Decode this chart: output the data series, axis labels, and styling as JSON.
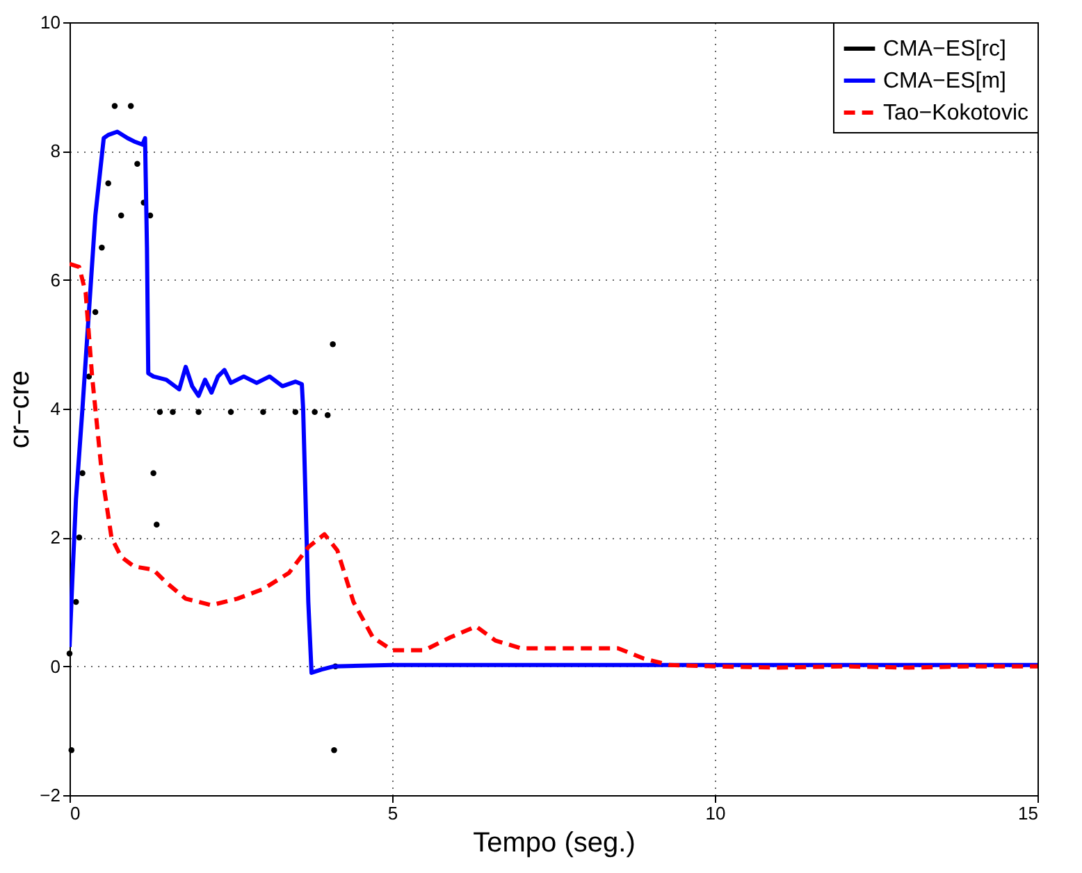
{
  "chart_data": {
    "type": "line",
    "xlabel": "Tempo (seg.)",
    "ylabel": "cr−cre",
    "xlim": [
      0,
      15
    ],
    "ylim": [
      -2,
      10
    ],
    "xticks": [
      0,
      5,
      10,
      15
    ],
    "yticks": [
      -2,
      0,
      2,
      4,
      6,
      8,
      10
    ],
    "grid": true,
    "legend": "top right",
    "series": [
      {
        "name": "CMA−ES[rc]",
        "type": "scatter",
        "color": "#000000",
        "x": [
          0,
          0.03,
          0.1,
          0.15,
          0.2,
          0.3,
          0.4,
          0.5,
          0.6,
          0.7,
          0.8,
          0.95,
          1.05,
          1.15,
          1.25,
          1.3,
          1.35,
          1.4,
          1.6,
          2.0,
          2.5,
          3.0,
          3.5,
          3.8,
          4.0,
          4.08,
          4.1,
          4.12
        ],
        "values": [
          0.2,
          -1.3,
          1.0,
          2.0,
          3.0,
          4.5,
          5.5,
          6.5,
          7.5,
          8.7,
          7.0,
          8.7,
          7.8,
          7.2,
          7.0,
          3.0,
          2.2,
          3.95,
          3.95,
          3.95,
          3.95,
          3.95,
          3.95,
          3.95,
          3.9,
          5.0,
          -1.3,
          0.0
        ]
      },
      {
        "name": "CMA−ES[m]",
        "color": "#0000ff",
        "line_style": "solid",
        "x": [
          0,
          0.05,
          0.1,
          0.2,
          0.3,
          0.4,
          0.53,
          0.6,
          0.74,
          0.9,
          1.0,
          1.13,
          1.17,
          1.2,
          1.22,
          1.3,
          1.5,
          1.7,
          1.8,
          1.9,
          2.0,
          2.1,
          2.2,
          2.3,
          2.4,
          2.5,
          2.7,
          2.9,
          3.1,
          3.3,
          3.5,
          3.6,
          3.62,
          3.7,
          3.75,
          3.9,
          4.1,
          5,
          7,
          9,
          11,
          13,
          15
        ],
        "values": [
          0.3,
          1.5,
          2.6,
          4.0,
          5.5,
          7.0,
          8.2,
          8.25,
          8.3,
          8.2,
          8.15,
          8.1,
          8.2,
          6.5,
          4.55,
          4.5,
          4.45,
          4.3,
          4.65,
          4.35,
          4.2,
          4.45,
          4.25,
          4.5,
          4.6,
          4.4,
          4.5,
          4.4,
          4.5,
          4.35,
          4.42,
          4.38,
          4.0,
          1.0,
          -0.1,
          -0.05,
          0.0,
          0.02,
          0.02,
          0.02,
          0.02,
          0.02,
          0.02
        ]
      },
      {
        "name": "Tao−Kokotovic",
        "color": "#ff0000",
        "line_style": "dashed",
        "x": [
          0,
          0.15,
          0.25,
          0.35,
          0.5,
          0.65,
          0.8,
          1.0,
          1.3,
          1.5,
          1.8,
          2.2,
          2.6,
          3.0,
          3.4,
          3.7,
          3.95,
          4.15,
          4.4,
          4.7,
          5.0,
          5.5,
          5.9,
          6.3,
          6.6,
          7.0,
          8.0,
          8.5,
          8.9,
          9.3,
          10,
          11,
          12,
          13,
          14,
          15
        ],
        "values": [
          6.25,
          6.2,
          5.8,
          4.5,
          3.0,
          2.0,
          1.7,
          1.55,
          1.5,
          1.3,
          1.05,
          0.95,
          1.05,
          1.2,
          1.45,
          1.85,
          2.05,
          1.8,
          1.0,
          0.45,
          0.25,
          0.25,
          0.45,
          0.62,
          0.4,
          0.28,
          0.28,
          0.28,
          0.12,
          0.02,
          0.0,
          -0.02,
          0.0,
          -0.02,
          0.0,
          0.0
        ]
      }
    ]
  }
}
